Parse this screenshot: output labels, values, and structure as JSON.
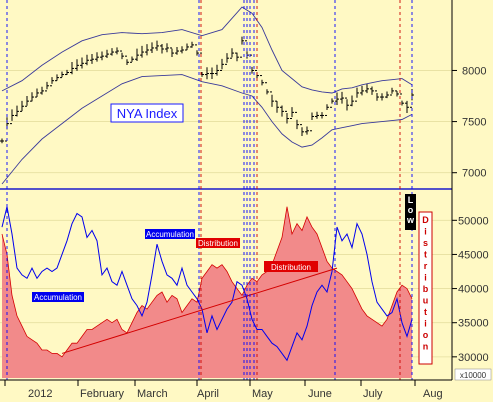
{
  "colors": {
    "background": "#fff9c4",
    "price": "#000000",
    "bands": "#3a3a9a",
    "accumulation": "#0000ee",
    "distribution_fill": "#f28a8a",
    "distribution_line": "#d40000",
    "blue_marker": "#0000ff",
    "red_marker": "#cc0000",
    "panel_divider": "#1a1acc",
    "label_blue_bg": "#0000ee",
    "label_red_bg": "#e00000"
  },
  "chart_data": [
    {
      "type": "line",
      "title": "NYA Index",
      "y_ticks": [
        "8000",
        "7500",
        "7000"
      ],
      "y_tick_values": [
        8000,
        7500,
        7000
      ],
      "ylim": [
        6870,
        8650
      ],
      "x_months": [
        "2012",
        "February",
        "March",
        "April",
        "May",
        "June",
        "July",
        "Aug"
      ],
      "price_series": {
        "name": "",
        "x": [
          0,
          5,
          10,
          15,
          20,
          25,
          30,
          35,
          40,
          45,
          50,
          55,
          60,
          65,
          70,
          75,
          80,
          85,
          90,
          95,
          100,
          105,
          110,
          115,
          120,
          125,
          130,
          135,
          140,
          145,
          150,
          155,
          160,
          165,
          170,
          175,
          180,
          185,
          190,
          195,
          200,
          205,
          210,
          215,
          220,
          225,
          230,
          235,
          240,
          245,
          250,
          255,
          260,
          265,
          270,
          275,
          280,
          285,
          290,
          295,
          300,
          305,
          310,
          315,
          320,
          325,
          330,
          335,
          340,
          345,
          350,
          355,
          360,
          365,
          370,
          375,
          380,
          385,
          390,
          395,
          400,
          405,
          410
        ],
        "y": [
          7310,
          7480,
          7560,
          7600,
          7650,
          7700,
          7740,
          7780,
          7800,
          7850,
          7900,
          7930,
          7960,
          7980,
          8020,
          8050,
          8070,
          8100,
          8110,
          8130,
          8140,
          8160,
          8180,
          8190,
          8140,
          8080,
          8110,
          8150,
          8180,
          8200,
          8220,
          8240,
          8210,
          8220,
          8170,
          8190,
          8200,
          8230,
          8250,
          8170,
          7960,
          7970,
          7970,
          8000,
          8060,
          8120,
          8170,
          8130,
          8290,
          8150,
          8000,
          7950,
          7880,
          7790,
          7700,
          7640,
          7600,
          7530,
          7590,
          7470,
          7400,
          7410,
          7550,
          7560,
          7560,
          7640,
          7700,
          7720,
          7730,
          7660,
          7700,
          7780,
          7800,
          7820,
          7800,
          7740,
          7740,
          7760,
          7800,
          7770,
          7680,
          7640,
          7760
        ]
      },
      "upper_band": {
        "x": [
          0,
          20,
          40,
          60,
          80,
          100,
          120,
          140,
          160,
          180,
          200,
          220,
          240,
          250,
          260,
          270,
          280,
          290,
          300,
          310,
          320,
          330,
          340,
          350,
          360,
          370,
          380,
          390,
          400,
          410
        ],
        "y": [
          7800,
          7900,
          8050,
          8180,
          8290,
          8350,
          8370,
          8360,
          8370,
          8400,
          8340,
          8400,
          8620,
          8560,
          8420,
          8200,
          8000,
          7920,
          7840,
          7810,
          7790,
          7780,
          7820,
          7830,
          7860,
          7880,
          7900,
          7910,
          7920,
          7860
        ]
      },
      "lower_band": {
        "x": [
          0,
          20,
          40,
          60,
          80,
          100,
          120,
          140,
          160,
          180,
          200,
          220,
          240,
          250,
          260,
          270,
          280,
          290,
          300,
          310,
          320,
          330,
          340,
          350,
          360,
          370,
          380,
          390,
          400,
          410
        ],
        "y": [
          6890,
          7130,
          7330,
          7480,
          7630,
          7750,
          7870,
          7940,
          7950,
          7960,
          7890,
          7850,
          7780,
          7750,
          7640,
          7500,
          7380,
          7300,
          7250,
          7270,
          7340,
          7420,
          7440,
          7460,
          7480,
          7490,
          7500,
          7510,
          7520,
          7570
        ]
      },
      "label": "NYA Index"
    },
    {
      "type": "area",
      "y_ticks": [
        "50000",
        "45000",
        "40000",
        "35000",
        "30000"
      ],
      "y_tick_values": [
        50000,
        45000,
        40000,
        35000,
        30000
      ],
      "ylim": [
        26900,
        54000
      ],
      "multiplier_label": "x10000",
      "series": [
        {
          "name": "Distribution",
          "x": [
            0,
            5,
            10,
            15,
            20,
            25,
            30,
            35,
            40,
            45,
            50,
            55,
            60,
            65,
            70,
            75,
            80,
            85,
            90,
            95,
            100,
            105,
            110,
            115,
            120,
            125,
            130,
            135,
            140,
            145,
            150,
            155,
            160,
            165,
            170,
            175,
            180,
            185,
            190,
            195,
            200,
            205,
            210,
            215,
            220,
            225,
            230,
            235,
            240,
            245,
            250,
            255,
            260,
            265,
            270,
            275,
            280,
            285,
            290,
            295,
            300,
            305,
            310,
            315,
            320,
            325,
            330,
            335,
            340,
            345,
            350,
            355,
            360,
            365,
            370,
            375,
            380,
            385,
            390,
            395,
            400,
            405,
            410
          ],
          "y": [
            48000,
            45000,
            39000,
            36000,
            34500,
            33000,
            32500,
            32000,
            31000,
            31000,
            30500,
            30500,
            30000,
            31000,
            32000,
            32000,
            33000,
            34000,
            34000,
            34500,
            35000,
            35500,
            35000,
            35500,
            34000,
            33500,
            35000,
            36500,
            37500,
            37000,
            38000,
            39000,
            39500,
            38000,
            39000,
            38500,
            36500,
            37500,
            38500,
            38000,
            41500,
            42500,
            43500,
            43000,
            43500,
            42500,
            41000,
            40000,
            39000,
            40500,
            41500,
            41000,
            42000,
            42500,
            43500,
            45500,
            47500,
            52000,
            48000,
            49500,
            48500,
            50500,
            49000,
            48000,
            46000,
            44000,
            43000,
            42500,
            42000,
            41000,
            40000,
            38500,
            37000,
            36000,
            35500,
            35000,
            34500,
            35500,
            37500,
            39500,
            40500,
            40000,
            38500
          ]
        },
        {
          "name": "Accumulation",
          "x": [
            0,
            5,
            10,
            15,
            20,
            25,
            30,
            35,
            40,
            45,
            50,
            55,
            60,
            65,
            70,
            75,
            80,
            85,
            90,
            95,
            100,
            105,
            110,
            115,
            120,
            125,
            130,
            135,
            140,
            145,
            150,
            155,
            160,
            165,
            170,
            175,
            180,
            185,
            190,
            195,
            200,
            205,
            210,
            215,
            220,
            225,
            230,
            235,
            240,
            245,
            250,
            255,
            260,
            265,
            270,
            275,
            280,
            285,
            290,
            295,
            300,
            305,
            310,
            315,
            320,
            325,
            330,
            335,
            340,
            345,
            350,
            355,
            360,
            365,
            370,
            375,
            380,
            385,
            390,
            395,
            400,
            405,
            410
          ],
          "y": [
            49000,
            52000,
            48000,
            43000,
            42000,
            41500,
            43000,
            41500,
            42500,
            43000,
            42500,
            43000,
            45000,
            47000,
            49500,
            51000,
            50500,
            47500,
            48500,
            47000,
            42000,
            43000,
            41000,
            40500,
            42500,
            40500,
            38500,
            37500,
            36000,
            38000,
            42000,
            46500,
            44000,
            42000,
            41500,
            40500,
            43000,
            40500,
            39500,
            38500,
            37000,
            33500,
            36000,
            34000,
            35500,
            37000,
            38000,
            41000,
            40500,
            38500,
            35500,
            34000,
            34000,
            33000,
            32000,
            31500,
            30500,
            29500,
            31500,
            33500,
            32500,
            34500,
            37500,
            39500,
            40500,
            39500,
            42500,
            49000,
            47000,
            48000,
            46000,
            49500,
            48000,
            45000,
            41000,
            38000,
            37000,
            36000,
            36500,
            38500,
            35000,
            33000,
            35500
          ]
        }
      ],
      "annotations": [
        {
          "text": "Accumulation",
          "style": "blue"
        },
        {
          "text": "Accumulation",
          "style": "blue"
        },
        {
          "text": "Distribution",
          "style": "red"
        },
        {
          "text": "Distribution",
          "style": "red"
        }
      ],
      "trendline": {
        "x": [
          60,
          335
        ],
        "y": [
          30500,
          43000
        ]
      },
      "right_vertical_labels": [
        "Low",
        "Distribution"
      ]
    }
  ],
  "markers": {
    "blue_x": [
      5,
      197,
      242,
      245,
      248,
      252,
      333,
      410
    ],
    "red_x": [
      199,
      255,
      398
    ]
  }
}
